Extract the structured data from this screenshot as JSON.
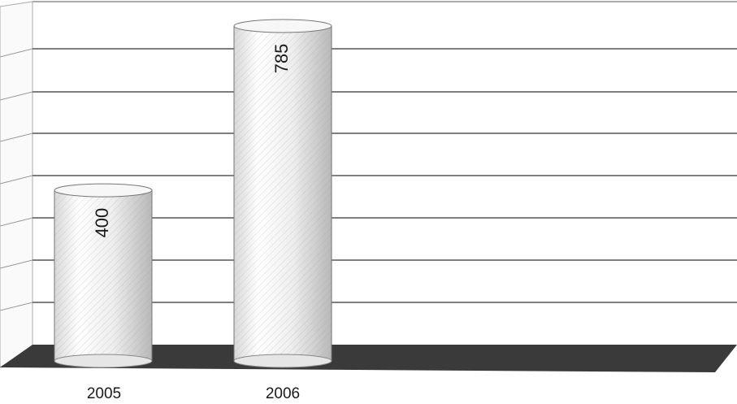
{
  "chart_data": {
    "type": "bar",
    "style": "3d-cylinder",
    "categories": [
      "2005",
      "2006"
    ],
    "values": [
      400,
      785
    ],
    "title": "",
    "xlabel": "",
    "ylabel": "",
    "ylim": [
      0,
      800
    ],
    "grid": true,
    "legend": "none"
  },
  "colors": {
    "bar": "#f2f2f2",
    "floor": "#3a3a3a",
    "grid": "#555555"
  }
}
